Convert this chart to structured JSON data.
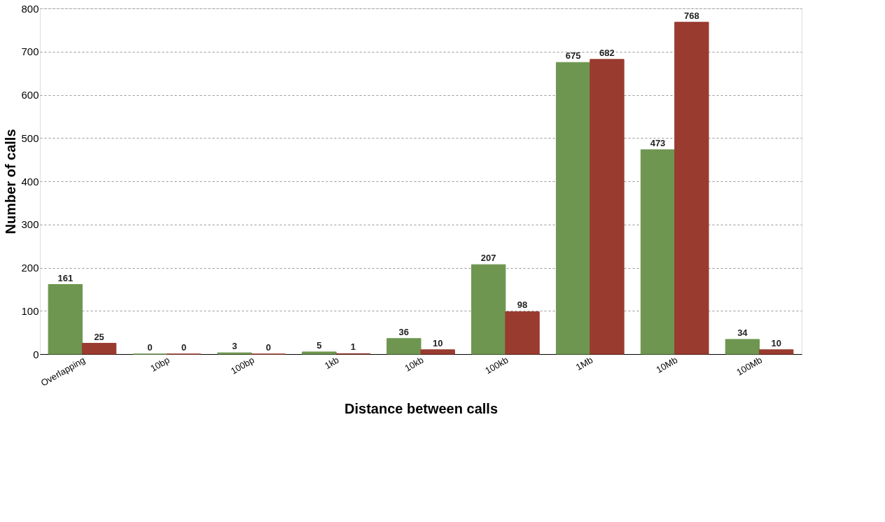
{
  "chart_data": {
    "type": "bar",
    "xlabel": "Distance between calls",
    "ylabel": "Number of calls",
    "categories": [
      "Overlapping",
      "10bp",
      "100bp",
      "1kb",
      "10kb",
      "100kb",
      "1Mb",
      "10Mb",
      "100Mb"
    ],
    "series": [
      {
        "color": "#6e9650",
        "values": [
          161,
          0,
          3,
          5,
          36,
          207,
          675,
          473,
          34
        ]
      },
      {
        "color": "#9a3b30",
        "values": [
          25,
          0,
          0,
          1,
          10,
          98,
          682,
          768,
          10
        ]
      }
    ],
    "ylim": [
      0,
      800
    ],
    "yticks": [
      0,
      100,
      200,
      300,
      400,
      500,
      600,
      700,
      800
    ],
    "grid": "y",
    "data_labels": true
  }
}
